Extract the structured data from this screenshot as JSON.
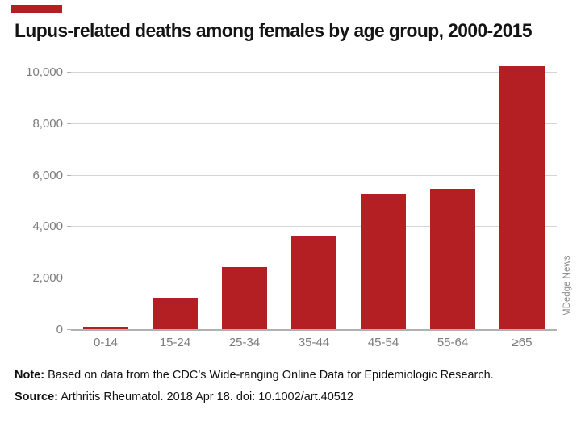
{
  "title": "Lupus-related deaths among females by age group, 2000-2015",
  "accent_color": "#b41f24",
  "watermark": "MDedge News",
  "note": {
    "label": "Note:",
    "text": " Based on data from the CDC’s Wide-ranging Online Data for Epidemiologic Research."
  },
  "source": {
    "label": "Source:",
    "text": " Arthritis Rheumatol. 2018 Apr 18. doi: 10.1002/art.40512"
  },
  "chart_data": {
    "type": "bar",
    "title": "Lupus-related deaths among females by age group, 2000-2015",
    "categories": [
      "0-14",
      "15-24",
      "25-34",
      "35-44",
      "45-54",
      "55-64",
      "≥65"
    ],
    "values": [
      130,
      1250,
      2450,
      3650,
      5300,
      5500,
      10250
    ],
    "bar_color": "#b41f24",
    "xlabel": "",
    "ylabel": "",
    "yticks": [
      0,
      2000,
      4000,
      6000,
      8000,
      10000
    ],
    "ytick_labels": [
      "0",
      "2,000",
      "4,000",
      "6,000",
      "8,000",
      "10,000"
    ],
    "ylim": [
      0,
      10470
    ],
    "grid": true,
    "legend": false
  }
}
